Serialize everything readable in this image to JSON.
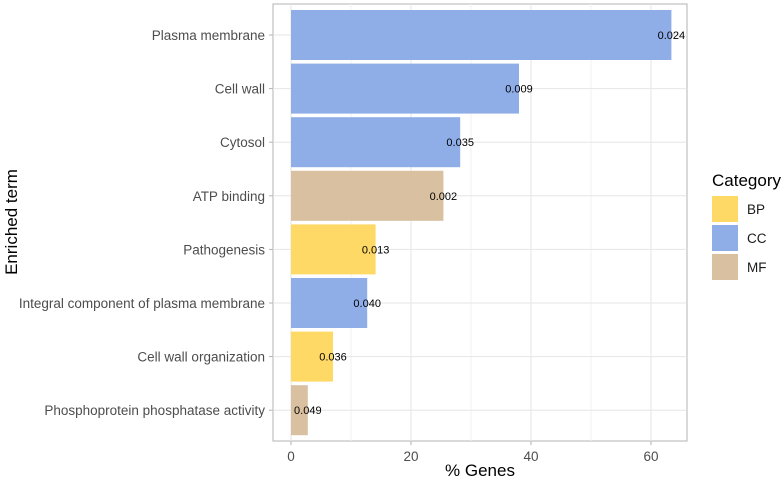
{
  "chart_data": {
    "type": "bar",
    "orientation": "horizontal",
    "xlabel": "% Genes",
    "ylabel": "Enriched term",
    "xlim": [
      -3,
      66
    ],
    "x_ticks": [
      0,
      20,
      40,
      60
    ],
    "x_tick_labels": [
      "0",
      "20",
      "40",
      "60"
    ],
    "grid": true,
    "legend_position": "right",
    "legend": {
      "title": "Category",
      "entries": [
        {
          "key": "BP",
          "label": "BP",
          "color": "#FFD966"
        },
        {
          "key": "CC",
          "label": "CC",
          "color": "#8FAEE8"
        },
        {
          "key": "MF",
          "label": "MF",
          "color": "#D9C0A0"
        }
      ]
    },
    "bars": [
      {
        "term": "Plasma membrane",
        "value": 63.4,
        "category": "CC",
        "label": "0.024"
      },
      {
        "term": "Cell wall",
        "value": 38.0,
        "category": "CC",
        "label": "0.009"
      },
      {
        "term": "Cytosol",
        "value": 28.2,
        "category": "CC",
        "label": "0.035"
      },
      {
        "term": "ATP binding",
        "value": 25.4,
        "category": "MF",
        "label": "0.002"
      },
      {
        "term": "Pathogenesis",
        "value": 14.1,
        "category": "BP",
        "label": "0.013"
      },
      {
        "term": "Integral component of plasma membrane",
        "value": 12.7,
        "category": "CC",
        "label": "0.040"
      },
      {
        "term": "Cell wall organization",
        "value": 7.0,
        "category": "BP",
        "label": "0.036"
      },
      {
        "term": "Phosphoprotein phosphatase activity",
        "value": 2.8,
        "category": "MF",
        "label": "0.049"
      }
    ]
  }
}
